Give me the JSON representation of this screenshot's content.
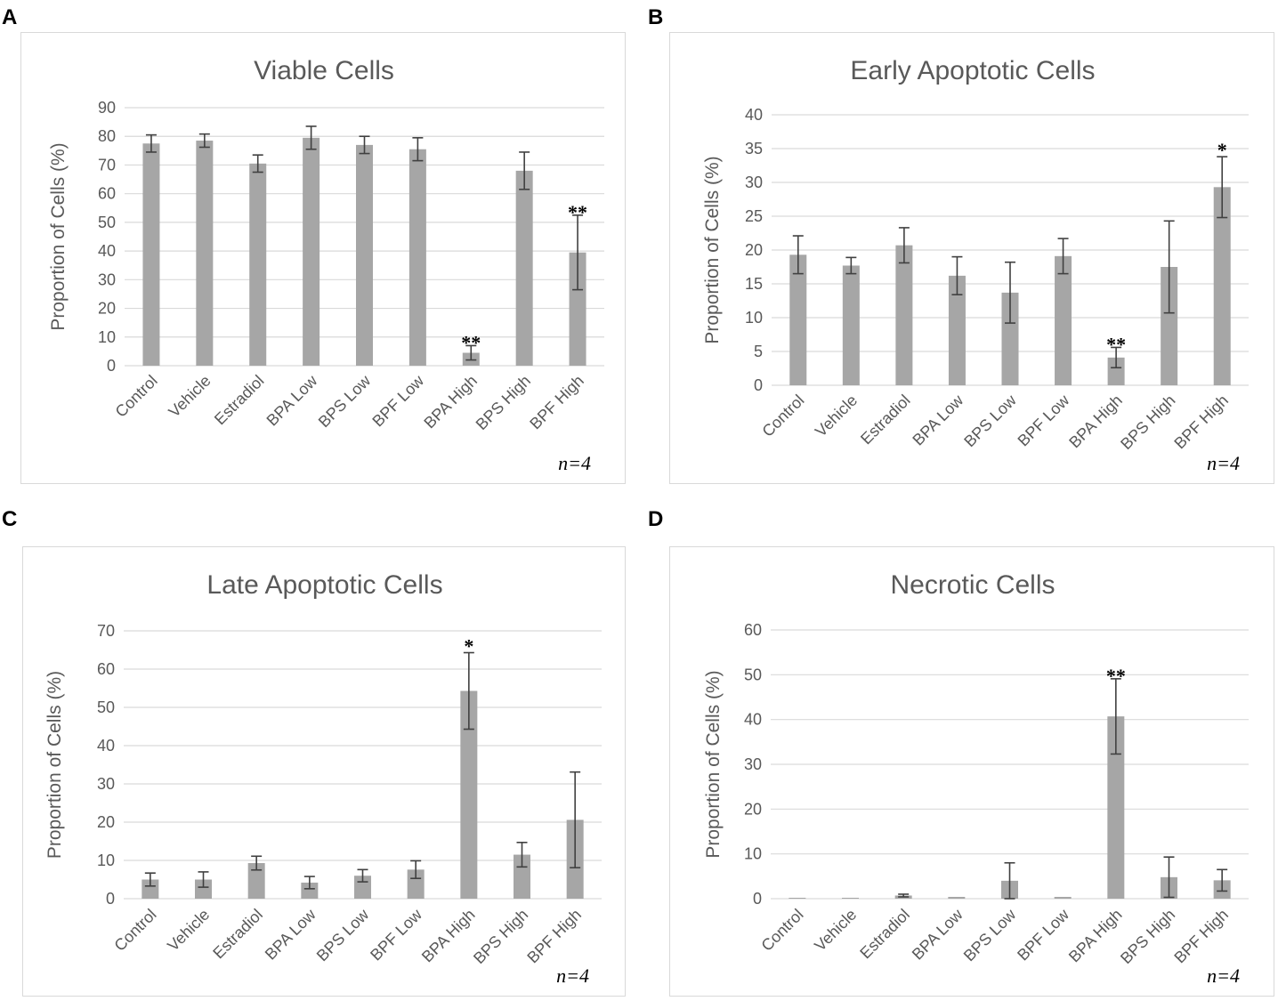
{
  "panel_letters": [
    "A",
    "B",
    "C",
    "D"
  ],
  "chart_data": [
    {
      "type": "bar",
      "title": "Viable Cells",
      "ylabel": "Proportion of Cells (%)",
      "xlabel": "",
      "categories": [
        "Control",
        "Vehicle",
        "Estradiol",
        "BPA Low",
        "BPS Low",
        "BPF Low",
        "BPA High",
        "BPS High",
        "BPF High"
      ],
      "values": [
        77.5,
        78.5,
        70.5,
        79.5,
        77,
        75.5,
        4.5,
        68,
        39.5
      ],
      "errors": [
        3,
        2.3,
        3,
        4,
        3,
        4,
        2.5,
        6.5,
        13
      ],
      "significance": [
        "",
        "",
        "",
        "",
        "",
        "",
        "**",
        "",
        "**"
      ],
      "ylim": [
        0,
        90
      ],
      "yticks": [
        0,
        10,
        20,
        30,
        40,
        50,
        60,
        70,
        80,
        90
      ],
      "grid": true,
      "note": "n=4"
    },
    {
      "type": "bar",
      "title": "Early Apoptotic Cells",
      "ylabel": "Proportion of Cells (%)",
      "xlabel": "",
      "categories": [
        "Control",
        "Vehicle",
        "Estradiol",
        "BPA Low",
        "BPS Low",
        "BPF Low",
        "BPA High",
        "BPS High",
        "BPF High"
      ],
      "values": [
        19.3,
        17.7,
        20.7,
        16.2,
        13.7,
        19.1,
        4.1,
        17.5,
        29.3
      ],
      "errors": [
        2.8,
        1.2,
        2.6,
        2.8,
        4.5,
        2.6,
        1.5,
        6.8,
        4.5
      ],
      "significance": [
        "",
        "",
        "",
        "",
        "",
        "",
        "**",
        "",
        "*"
      ],
      "ylim": [
        0,
        40
      ],
      "yticks": [
        0,
        5,
        10,
        15,
        20,
        25,
        30,
        35,
        40
      ],
      "grid": true,
      "note": "n=4"
    },
    {
      "type": "bar",
      "title": "Late Apoptotic Cells",
      "ylabel": "Proportion of Cells (%)",
      "xlabel": "",
      "categories": [
        "Control",
        "Vehicle",
        "Estradiol",
        "BPA Low",
        "BPS Low",
        "BPF Low",
        "BPA High",
        "BPS High",
        "BPF High"
      ],
      "values": [
        5,
        5,
        9.3,
        4.2,
        6,
        7.6,
        54.3,
        11.5,
        20.6
      ],
      "errors": [
        1.7,
        2,
        1.8,
        1.6,
        1.6,
        2.3,
        10,
        3.2,
        12.5
      ],
      "significance": [
        "",
        "",
        "",
        "",
        "",
        "",
        "*",
        "",
        ""
      ],
      "ylim": [
        0,
        70
      ],
      "yticks": [
        0,
        10,
        20,
        30,
        40,
        50,
        60,
        70
      ],
      "grid": true,
      "note": "n=4"
    },
    {
      "type": "bar",
      "title": "Necrotic Cells",
      "ylabel": "Proportion of Cells (%)",
      "xlabel": "",
      "categories": [
        "Control",
        "Vehicle",
        "Estradiol",
        "BPA Low",
        "BPS Low",
        "BPF Low",
        "BPA High",
        "BPS High",
        "BPF High"
      ],
      "values": [
        0.2,
        0.2,
        0.7,
        0.4,
        4,
        0.4,
        40.7,
        4.8,
        4.1
      ],
      "errors": [
        0,
        0,
        0.3,
        0,
        4,
        0,
        8.4,
        4.5,
        2.4
      ],
      "significance": [
        "",
        "",
        "",
        "",
        "",
        "",
        "**",
        "",
        ""
      ],
      "ylim": [
        0,
        60
      ],
      "yticks": [
        0,
        10,
        20,
        30,
        40,
        50,
        60
      ],
      "grid": true,
      "note": "n=4"
    }
  ]
}
